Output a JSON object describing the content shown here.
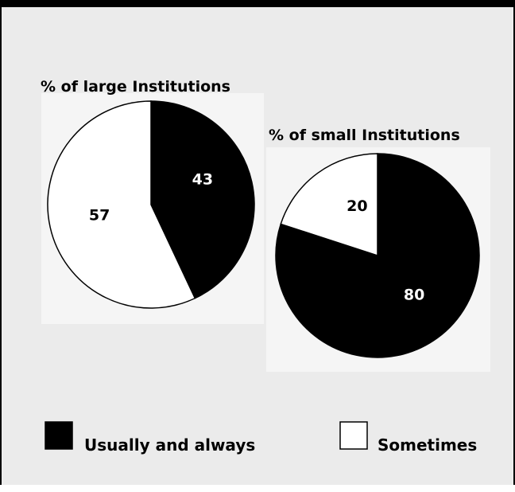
{
  "chart_data": [
    {
      "type": "pie",
      "title": "% of large Institutions",
      "slices": [
        {
          "label": "Usually and always",
          "value": 43,
          "value_label": "43",
          "color": "#000000"
        },
        {
          "label": "Sometimes",
          "value": 57,
          "value_label": "57",
          "color": "#ffffff"
        }
      ]
    },
    {
      "type": "pie",
      "title": "% of small Institutions",
      "slices": [
        {
          "label": "Usually and always",
          "value": 80,
          "value_label": "80",
          "color": "#000000"
        },
        {
          "label": "Sometimes",
          "value": 20,
          "value_label": "20",
          "color": "#ffffff"
        }
      ]
    }
  ],
  "legend": {
    "placement": "bottom",
    "items": [
      {
        "label": "Usually and always",
        "color": "#000000"
      },
      {
        "label": "Sometimes",
        "color": "#ffffff"
      }
    ]
  },
  "colors": {
    "background": "#ebebeb",
    "border": "#000000",
    "shadow_panel": "#f5f5f5"
  }
}
